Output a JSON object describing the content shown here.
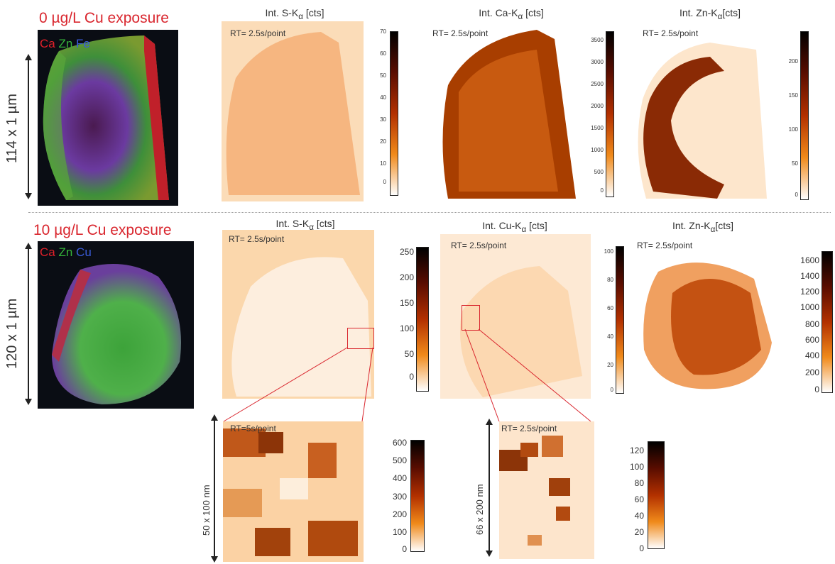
{
  "row1": {
    "heading": "0 µg/L Cu exposure",
    "scale_label": "114 x 1 µm",
    "channels": [
      {
        "label": "Ca",
        "color": "#e0202a"
      },
      {
        "label": "Zn",
        "color": "#35b53a"
      },
      {
        "label": "Fe",
        "color": "#3a5bd9"
      }
    ],
    "maps": [
      {
        "title": "Int. S-K",
        "sub": "α",
        "unit": " [cts]",
        "rt": "RT= 2.5s/point",
        "ticks": [
          "70",
          "60",
          "50",
          "40",
          "30",
          "20",
          "10",
          "0"
        ]
      },
      {
        "title": "Int. Ca-K",
        "sub": "α",
        "unit": " [cts]",
        "rt": "RT= 2.5s/point",
        "ticks": [
          "3500",
          "3000",
          "2500",
          "2000",
          "1500",
          "1000",
          "500",
          "0"
        ]
      },
      {
        "title": "Int. Zn-K",
        "sub": "α",
        "unit": "[cts]",
        "rt": "RT= 2.5s/point",
        "ticks": [
          "200",
          "150",
          "100",
          "50",
          "0"
        ]
      }
    ]
  },
  "row2": {
    "heading": "10 µg/L Cu exposure",
    "scale_label": "120 x 1 µm",
    "channels": [
      {
        "label": "Ca",
        "color": "#e0202a"
      },
      {
        "label": "Zn",
        "color": "#35b53a"
      },
      {
        "label": "Cu",
        "color": "#3a5bd9"
      }
    ],
    "maps": [
      {
        "title": "Int. S-K",
        "sub": "α",
        "unit": " [cts]",
        "rt": "RT= 2.5s/point",
        "ticks": [
          "250",
          "200",
          "150",
          "100",
          "50",
          "0"
        ]
      },
      {
        "title": "Int. Cu-K",
        "sub": "α",
        "unit": " [cts]",
        "rt": "RT= 2.5s/point",
        "ticks": [
          "100",
          "80",
          "60",
          "40",
          "20",
          "0"
        ]
      },
      {
        "title": "Int. Zn-K",
        "sub": "α",
        "unit": "[cts]",
        "rt": "RT= 2.5s/point",
        "ticks": [
          "1600",
          "1400",
          "1200",
          "1000",
          "800",
          "600",
          "400",
          "200",
          "0"
        ]
      }
    ]
  },
  "zoom": [
    {
      "rt": "RT=5s/point",
      "scale_label": "50 x 100 nm",
      "ticks": [
        "600",
        "500",
        "400",
        "300",
        "200",
        "100",
        "0"
      ]
    },
    {
      "rt": "RT= 2.5s/point",
      "scale_label": "66 x 200 nm",
      "ticks": [
        "120",
        "100",
        "80",
        "60",
        "40",
        "20",
        "0"
      ]
    }
  ],
  "colors": {
    "heading": "#d9262e",
    "callout": "#d9262e"
  }
}
